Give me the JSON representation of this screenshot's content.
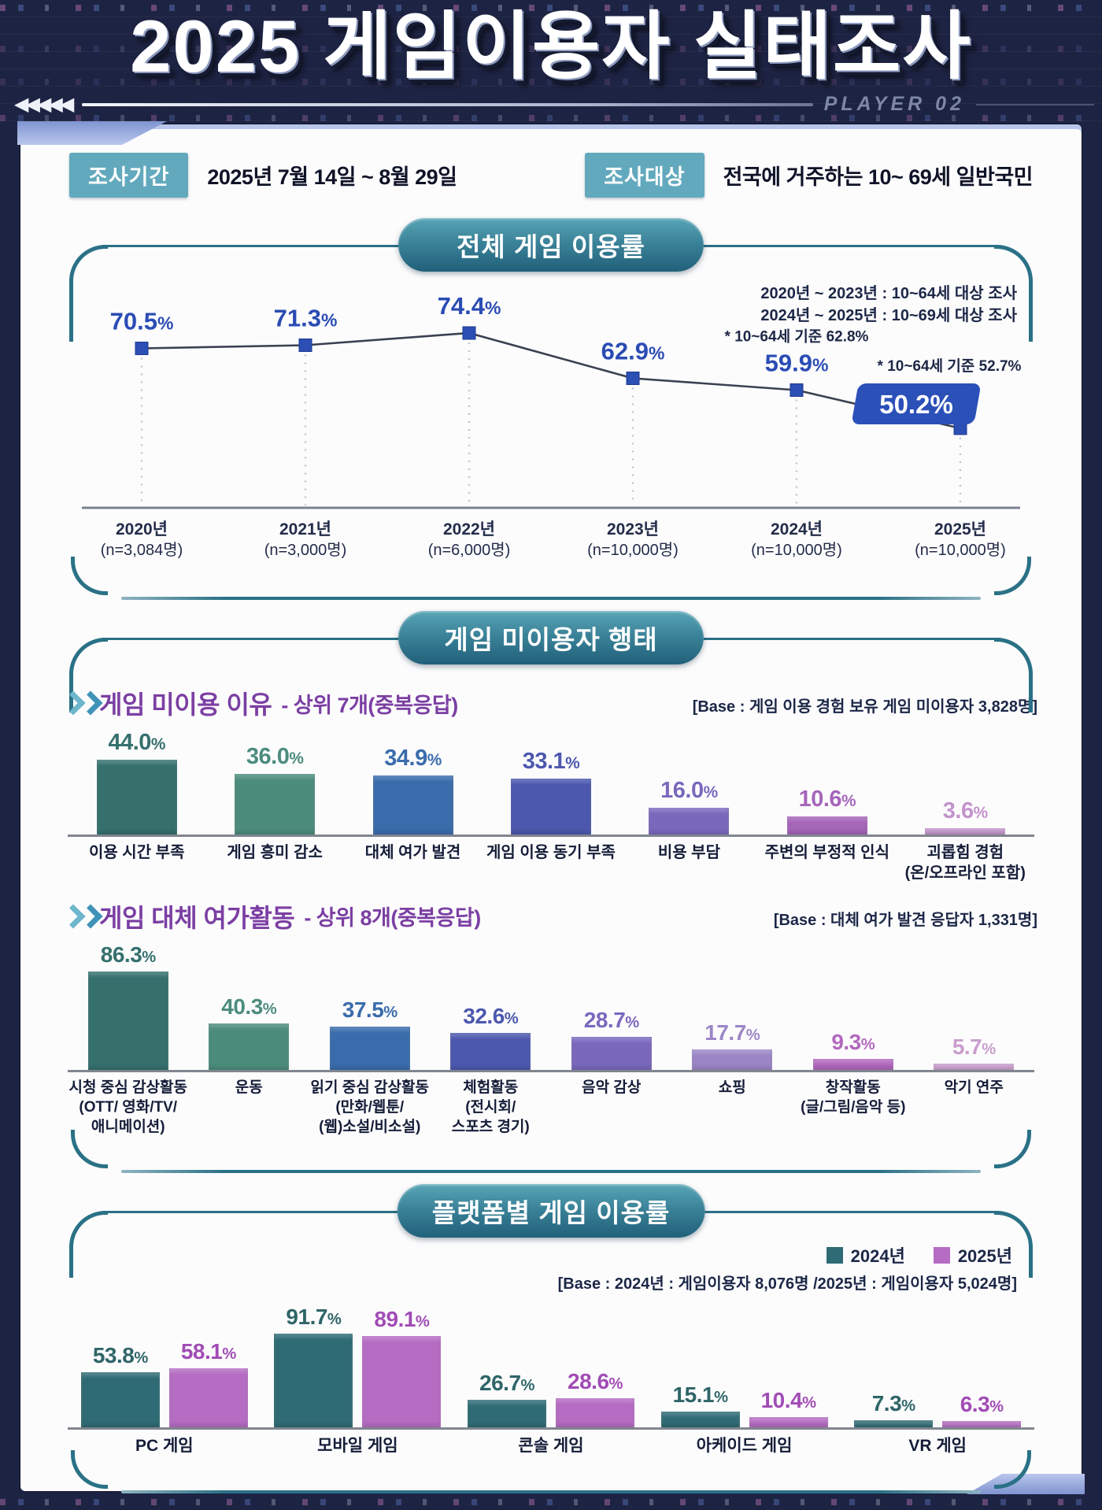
{
  "header": {
    "title": "2025 게임이용자 실태조사",
    "player_label": "PLAYER 02",
    "arrows": "◀◀◀◀◀"
  },
  "info": {
    "period_label": "조사기간",
    "period_value": "2025년 7월 14일 ~ 8월 29일",
    "target_label": "조사대상",
    "target_value": "전국에 거주하는 10~ 69세 일반국민"
  },
  "sections": {
    "overall": {
      "title": "전체 게임 이용률",
      "note_line1": "2020년 ~ 2023년 : 10~64세 대상 조사",
      "note_line2": "2024년 ~ 2025년 : 10~69세 대상 조사"
    },
    "nonuser": {
      "title": "게임 미이용자 행태",
      "sub1_main": "게임 미이용 이유",
      "sub1_rest": "- 상위 7개(중복응답)",
      "sub1_base": "[Base : 게임 이용 경험 보유 게임 미이용자 3,828명]",
      "sub2_main": "게임 대체 여가활동",
      "sub2_rest": "- 상위 8개(중복응답)",
      "sub2_base": "[Base : 대체 여가 발견 응답자 1,331명]"
    },
    "platform": {
      "title": "플랫폼별 게임 이용률",
      "base": "[Base : 2024년 : 게임이용자 8,076명 /2025년 : 게임이용자 5,024명]"
    }
  },
  "colors": {
    "background": "#1d2342",
    "card": "#fcfcfd",
    "teal_line": "#2a7186",
    "pill_top": "#59a5b6",
    "pill_bottom": "#21607a",
    "info_tag": "#62a9bd",
    "purple_heading": "#7b3fa3",
    "line_blue": "#2b4fb4",
    "badge_blue": "#2b50b8"
  },
  "chart_data": [
    {
      "id": "overall-usage-line",
      "type": "line",
      "title": "전체 게임 이용률",
      "x": [
        "2020년",
        "2021년",
        "2022년",
        "2023년",
        "2024년",
        "2025년"
      ],
      "x_sub": [
        "(n=3,084명)",
        "(n=3,000명)",
        "(n=6,000명)",
        "(n=10,000명)",
        "(n=10,000명)",
        "(n=10,000명)"
      ],
      "values": [
        70.5,
        71.3,
        74.4,
        62.9,
        59.9,
        50.2
      ],
      "unit": "%",
      "ylim": [
        30,
        80
      ],
      "grid": false,
      "marker": "square",
      "marker_color": "#2b4fb4",
      "label_color": "#2a4cb4",
      "annotations": [
        {
          "x_index": 4,
          "text": "* 10~64세 기준 62.8%"
        },
        {
          "x_index": 5,
          "text": "* 10~64세 기준 52.7%"
        }
      ],
      "highlight_last_badge": "50.2%"
    },
    {
      "id": "nonuse-reasons",
      "type": "bar",
      "title": "게임 미이용 이유 - 상위 7개(중복응답)",
      "base": "게임 이용 경험 보유 게임 미이용자 3,828명",
      "unit": "%",
      "categories": [
        "이용 시간 부족",
        "게임 흥미 감소",
        "대체 여가 발견",
        "게임 이용 동기 부족",
        "비용 부담",
        "주변의 부정적 인식",
        "괴롭힘 경험\n(온/오프라인 포함)"
      ],
      "values": [
        44.0,
        36.0,
        34.9,
        33.1,
        16.0,
        10.6,
        3.6
      ],
      "colors": [
        "#35706d",
        "#4c8c7d",
        "#3a6cab",
        "#4c58ae",
        "#7a68bd",
        "#a565b8",
        "#c393cb"
      ]
    },
    {
      "id": "alternative-activities",
      "type": "bar",
      "title": "게임 대체 여가활동 - 상위 8개(중복응답)",
      "base": "대체 여가 발견 응답자 1,331명",
      "unit": "%",
      "categories": [
        "시청 중심 감상활동\n(OTT/ 영화/TV/\n애니메이션)",
        "운동",
        "읽기 중심 감상활동\n(만화/웹툰/\n(웹)소설/비소설)",
        "체험활동\n(전시회/\n스포츠 경기)",
        "음악 감상",
        "쇼핑",
        "창작활동\n(글/그림/음악 등)",
        "악기 연주"
      ],
      "values": [
        86.3,
        40.3,
        37.5,
        32.6,
        28.7,
        17.7,
        9.3,
        5.7
      ],
      "colors": [
        "#35706d",
        "#4c8c7d",
        "#3a6cab",
        "#4c58ae",
        "#7a68bd",
        "#9c86c6",
        "#b168be",
        "#c99ecd"
      ]
    },
    {
      "id": "platform-usage",
      "type": "bar",
      "grouped": true,
      "title": "플랫폼별 게임 이용률",
      "unit": "%",
      "categories": [
        "PC 게임",
        "모바일 게임",
        "콘솔 게임",
        "아케이드 게임",
        "VR 게임"
      ],
      "series": [
        {
          "name": "2024년",
          "color": "#2f6b74",
          "label_color": "#2f6568",
          "values": [
            53.8,
            91.7,
            26.7,
            15.1,
            7.3
          ]
        },
        {
          "name": "2025년",
          "color": "#b56cc2",
          "label_color": "#a14cb5",
          "values": [
            58.1,
            89.1,
            28.6,
            10.4,
            6.3
          ]
        }
      ],
      "legend_position": "top-right"
    }
  ]
}
